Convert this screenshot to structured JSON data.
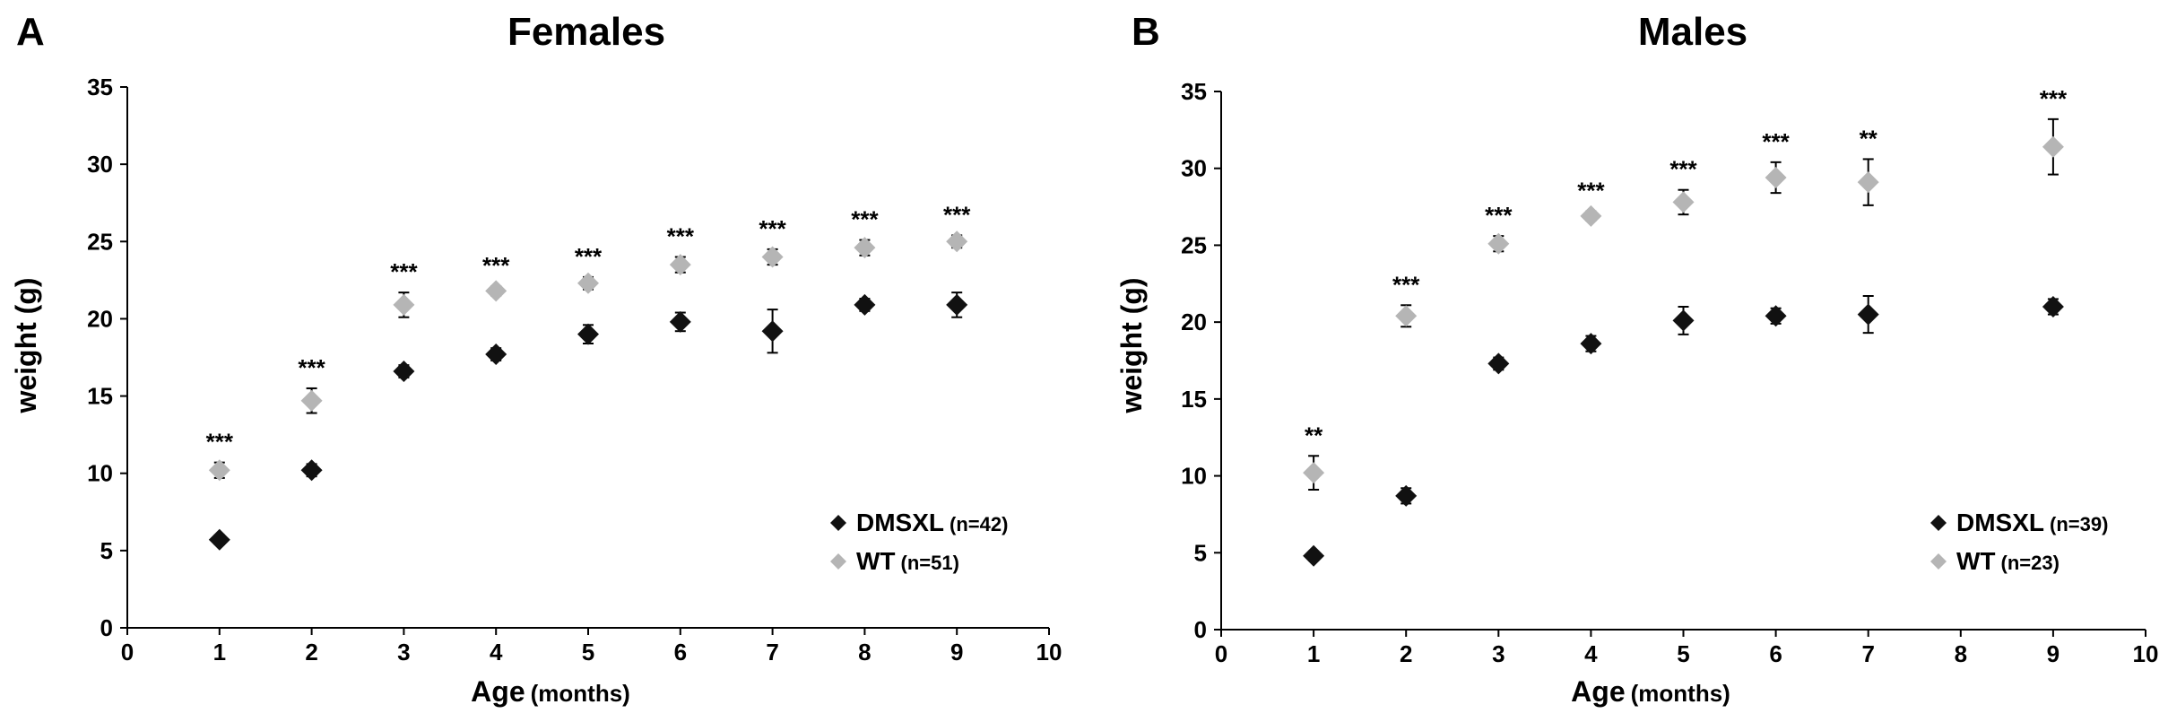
{
  "chart_data": [
    {
      "type": "scatter",
      "panel_label": "A",
      "title": "Females",
      "xlabel": "Age",
      "xlabel_unit": "(months)",
      "ylabel": "weight (g)",
      "xlim": [
        0,
        10
      ],
      "ylim": [
        0,
        35
      ],
      "xticks": [
        0,
        1,
        2,
        3,
        4,
        5,
        6,
        7,
        8,
        9,
        10
      ],
      "yticks": [
        0,
        5,
        10,
        15,
        20,
        25,
        30,
        35
      ],
      "grid": false,
      "legend_position": "bottom-right",
      "series": [
        {
          "name": "DMSXL",
          "n_label": "(n=42)",
          "color": "#111111",
          "marker": "diamond",
          "x": [
            1,
            2,
            3,
            4,
            5,
            6,
            7,
            8,
            9
          ],
          "y": [
            5.7,
            10.2,
            16.6,
            17.7,
            19.0,
            19.8,
            19.2,
            20.9,
            20.9
          ],
          "err": [
            0.3,
            0.4,
            0.4,
            0.4,
            0.6,
            0.6,
            1.4,
            0.4,
            0.8
          ]
        },
        {
          "name": "WT",
          "n_label": "(n=51)",
          "color": "#b5b5b5",
          "marker": "diamond",
          "x": [
            1,
            2,
            3,
            4,
            5,
            6,
            7,
            8,
            9
          ],
          "y": [
            10.2,
            14.7,
            20.9,
            21.8,
            22.3,
            23.5,
            24.0,
            24.6,
            25.0
          ],
          "err": [
            0.5,
            0.8,
            0.8,
            0.3,
            0.4,
            0.5,
            0.5,
            0.5,
            0.4
          ]
        }
      ],
      "annotations": [
        {
          "x": 1,
          "text": "***"
        },
        {
          "x": 2,
          "text": "***"
        },
        {
          "x": 3,
          "text": "***"
        },
        {
          "x": 4,
          "text": "***"
        },
        {
          "x": 5,
          "text": "***"
        },
        {
          "x": 6,
          "text": "***"
        },
        {
          "x": 7,
          "text": "***"
        },
        {
          "x": 8,
          "text": "***"
        },
        {
          "x": 9,
          "text": "***"
        }
      ]
    },
    {
      "type": "scatter",
      "panel_label": "B",
      "title": "Males",
      "xlabel": "Age",
      "xlabel_unit": "(months)",
      "ylabel": "weight (g)",
      "xlim": [
        0,
        10
      ],
      "ylim": [
        0,
        35
      ],
      "xticks": [
        0,
        1,
        2,
        3,
        4,
        5,
        6,
        7,
        8,
        9,
        10
      ],
      "yticks": [
        0,
        5,
        10,
        15,
        20,
        25,
        30,
        35
      ],
      "grid": false,
      "legend_position": "bottom-right",
      "series": [
        {
          "name": "DMSXL",
          "n_label": "(n=39)",
          "color": "#111111",
          "marker": "diamond",
          "x": [
            1,
            2,
            3,
            4,
            5,
            6,
            7,
            9
          ],
          "y": [
            4.8,
            8.7,
            17.3,
            18.6,
            20.1,
            20.4,
            20.5,
            21.0
          ],
          "err": [
            0.3,
            0.5,
            0.4,
            0.5,
            0.9,
            0.5,
            1.2,
            0.5
          ]
        },
        {
          "name": "WT",
          "n_label": "(n=23)",
          "color": "#b5b5b5",
          "marker": "diamond",
          "x": [
            1,
            2,
            3,
            4,
            5,
            6,
            7,
            9
          ],
          "y": [
            10.2,
            20.4,
            25.1,
            26.9,
            27.8,
            29.4,
            29.1,
            31.4
          ],
          "err": [
            1.1,
            0.7,
            0.5,
            0.3,
            0.8,
            1.0,
            1.5,
            1.8
          ]
        }
      ],
      "annotations": [
        {
          "x": 1,
          "text": "**"
        },
        {
          "x": 2,
          "text": "***"
        },
        {
          "x": 3,
          "text": "***"
        },
        {
          "x": 4,
          "text": "***"
        },
        {
          "x": 5,
          "text": "***"
        },
        {
          "x": 6,
          "text": "***"
        },
        {
          "x": 7,
          "text": "**"
        },
        {
          "x": 9,
          "text": "***"
        }
      ]
    }
  ]
}
